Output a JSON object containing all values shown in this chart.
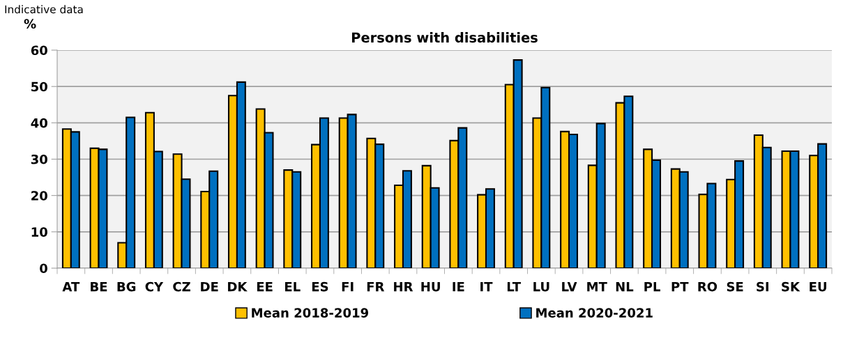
{
  "chart_data": {
    "type": "bar",
    "title": "Persons with disabilities",
    "ylabel": "%",
    "annotations": [
      "Indicative data"
    ],
    "categories": [
      "AT",
      "BE",
      "BG",
      "CY",
      "CZ",
      "DE",
      "DK",
      "EE",
      "EL",
      "ES",
      "FI",
      "FR",
      "HR",
      "HU",
      "IE",
      "IT",
      "LT",
      "LU",
      "LV",
      "MT",
      "NL",
      "PL",
      "PT",
      "RO",
      "SE",
      "SI",
      "SK",
      "EU"
    ],
    "series": [
      {
        "name": "Mean 2018-2019",
        "color": "#ffc000",
        "values": [
          38.3,
          33,
          7,
          42.8,
          31.4,
          21.1,
          47.5,
          43.8,
          27,
          34,
          41.3,
          35.7,
          22.8,
          28.2,
          35.1,
          20.2,
          50.5,
          41.3,
          37.6,
          28.3,
          45.5,
          32.7,
          27.3,
          20.3,
          24.4,
          36.6,
          32.2,
          31
        ]
      },
      {
        "name": "Mean 2020-2021",
        "color": "#0070c0",
        "values": [
          37.5,
          32.7,
          41.5,
          32.1,
          24.5,
          26.7,
          51.2,
          37.3,
          26.5,
          41.3,
          42.3,
          34.1,
          26.8,
          22.1,
          38.6,
          21.8,
          57.3,
          49.7,
          36.8,
          39.8,
          47.3,
          29.7,
          26.5,
          23.3,
          29.5,
          33.2,
          32.2,
          34.2
        ]
      }
    ],
    "ylim": [
      0,
      60
    ],
    "yticks": [
      0,
      10,
      20,
      30,
      40,
      50,
      60
    ],
    "grid": "y",
    "legend": "bottom"
  }
}
